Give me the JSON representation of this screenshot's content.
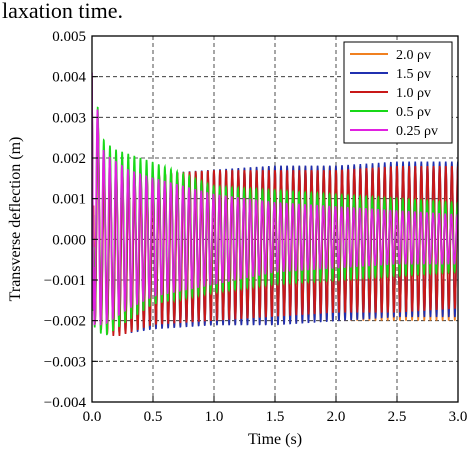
{
  "caption_fragment": "laxation time.",
  "chart_data": {
    "type": "line",
    "title": "",
    "xlabel": "Time (s)",
    "ylabel": "Transverse deflection (m)",
    "xlim": [
      0.0,
      3.0
    ],
    "ylim": [
      -0.004,
      0.005
    ],
    "xticks": [
      0.0,
      0.5,
      1.0,
      1.5,
      2.0,
      2.5,
      3.0
    ],
    "xtick_labels": [
      "0.0",
      "0.5",
      "1.0",
      "1.5",
      "2.0",
      "2.5",
      "3.0"
    ],
    "yticks": [
      -0.004,
      -0.003,
      -0.002,
      -0.001,
      0.0,
      0.001,
      0.002,
      0.003,
      0.004,
      0.005
    ],
    "ytick_labels": [
      "−0.004",
      "−0.003",
      "−0.002",
      "−0.001",
      "0.000",
      "0.001",
      "0.002",
      "0.003",
      "0.004",
      "0.005"
    ],
    "grid": true,
    "grid_style": "dashed",
    "legend_position": "top-right",
    "series": [
      {
        "name": "2.0 ρv",
        "color": "#f08020",
        "x": [
          0.0,
          0.1,
          0.2,
          0.3,
          0.5,
          1.0,
          1.5,
          2.0,
          2.5,
          3.0
        ],
        "upper_envelope": [
          0.004,
          0.0014,
          0.0015,
          0.0015,
          0.0016,
          0.0017,
          0.0018,
          0.0018,
          0.0018,
          0.0018
        ],
        "lower_envelope": [
          -0.002,
          -0.0022,
          -0.0023,
          -0.0023,
          -0.0022,
          -0.0021,
          -0.0021,
          -0.002,
          -0.002,
          -0.002
        ]
      },
      {
        "name": "1.5 ρv",
        "color": "#2030b0",
        "x": [
          0.0,
          0.1,
          0.2,
          0.3,
          0.5,
          1.0,
          1.5,
          2.0,
          2.5,
          3.0
        ],
        "upper_envelope": [
          0.004,
          0.0014,
          0.0015,
          0.0015,
          0.0016,
          0.0017,
          0.0018,
          0.0018,
          0.0019,
          0.0019
        ],
        "lower_envelope": [
          -0.002,
          -0.0022,
          -0.0023,
          -0.0023,
          -0.0022,
          -0.0021,
          -0.0021,
          -0.002,
          -0.0019,
          -0.0019
        ]
      },
      {
        "name": "1.0 ρv",
        "color": "#c81818",
        "x": [
          0.0,
          0.1,
          0.2,
          0.3,
          0.5,
          1.0,
          1.5,
          2.0,
          2.5,
          3.0
        ],
        "upper_envelope": [
          0.004,
          0.0016,
          0.0016,
          0.0016,
          0.0016,
          0.0017,
          0.0017,
          0.0017,
          0.0018,
          0.0018
        ],
        "lower_envelope": [
          -0.002,
          -0.0023,
          -0.0024,
          -0.0023,
          -0.0021,
          -0.002,
          -0.0019,
          -0.0018,
          -0.0018,
          -0.0017
        ]
      },
      {
        "name": "0.5 ρv",
        "color": "#18d818",
        "x": [
          0.0,
          0.1,
          0.2,
          0.3,
          0.5,
          1.0,
          1.5,
          2.0,
          2.5,
          3.0
        ],
        "upper_envelope": [
          0.004,
          0.0024,
          0.0022,
          0.0021,
          0.0019,
          0.0013,
          0.0012,
          0.0011,
          0.001,
          0.0009
        ],
        "lower_envelope": [
          -0.0021,
          -0.0024,
          -0.0022,
          -0.002,
          -0.0016,
          -0.0013,
          -0.0011,
          -0.001,
          -0.0009,
          -0.0008
        ]
      },
      {
        "name": "0.25 ρv",
        "color": "#e020e0",
        "x": [
          0.0,
          0.1,
          0.2,
          0.3,
          0.5,
          1.0,
          1.5,
          2.0,
          2.5,
          3.0
        ],
        "upper_envelope": [
          0.0041,
          0.0021,
          0.0019,
          0.0017,
          0.0015,
          0.0011,
          0.0009,
          0.0008,
          0.0007,
          0.0006
        ],
        "lower_envelope": [
          -0.0021,
          -0.0021,
          -0.0019,
          -0.0017,
          -0.0014,
          -0.0011,
          -0.0008,
          -0.0007,
          -0.0006,
          -0.0006
        ]
      }
    ]
  }
}
